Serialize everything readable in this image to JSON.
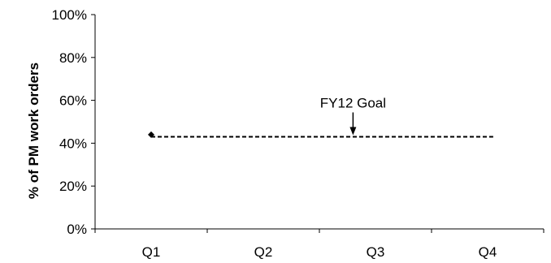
{
  "chart_data": {
    "type": "line",
    "categories": [
      "Q1",
      "Q2",
      "Q3",
      "Q4"
    ],
    "ylabel": "% of PM work orders",
    "xlabel": "",
    "ylim": [
      0,
      100
    ],
    "y_ticks": [
      "0%",
      "20%",
      "40%",
      "60%",
      "80%",
      "100%"
    ],
    "y_tick_values": [
      0,
      20,
      40,
      60,
      80,
      100
    ],
    "series": [
      {
        "values": [
          44,
          null,
          null,
          null
        ],
        "color": "#000000",
        "marker": "diamond"
      }
    ],
    "goal": {
      "value": 43,
      "label": "FY12 Goal",
      "style": "dashed",
      "color": "#000000"
    },
    "grid": false,
    "legend": "none"
  }
}
